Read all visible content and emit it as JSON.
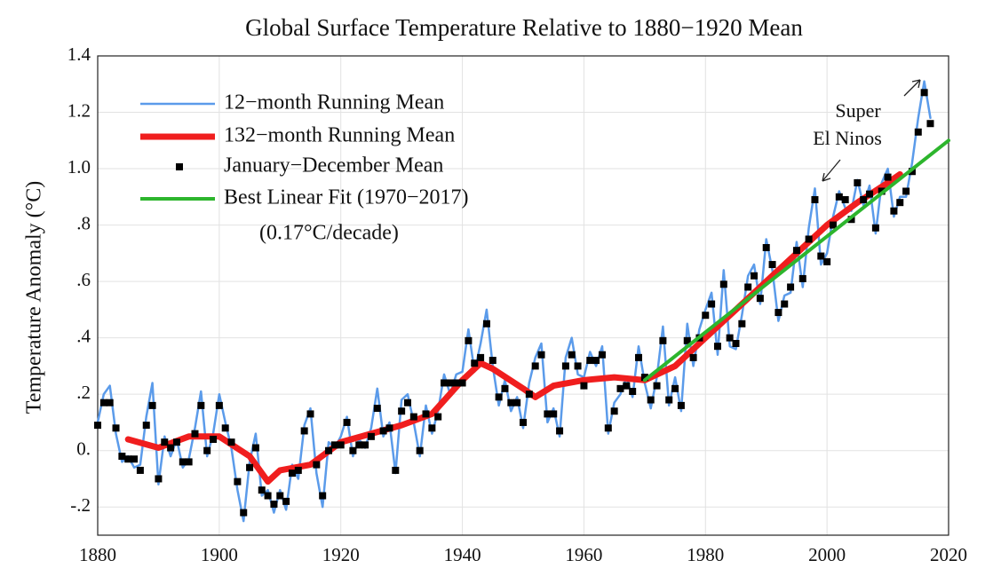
{
  "chart_data": {
    "type": "line",
    "title": "Global Surface Temperature Relative to 1880−1920 Mean",
    "y_label": "Temperature Anomaly (°C)",
    "annotations": [
      "(0.17°C/decade)",
      "Super",
      "El Ninos"
    ],
    "xlim": [
      1880,
      2020
    ],
    "xticks": [
      1880,
      1900,
      1920,
      1940,
      1960,
      1980,
      2000,
      2020
    ],
    "ylim": [
      -0.3,
      1.4
    ],
    "yticks": [
      {
        "value": -0.2,
        "label": "-.2"
      },
      {
        "value": 0,
        "label": "0."
      },
      {
        "value": 0.2,
        "label": ".2"
      },
      {
        "value": 0.4,
        "label": ".4"
      },
      {
        "value": 0.6,
        "label": ".6"
      },
      {
        "value": 0.8,
        "label": ".8"
      },
      {
        "value": 1.0,
        "label": "1.0"
      },
      {
        "value": 1.2,
        "label": "1.2"
      },
      1.4
    ],
    "grid": true,
    "series": [
      {
        "name": "12−month Running Mean",
        "color": "#5b9bea",
        "style": "line",
        "x": [
          1880,
          1881,
          1882,
          1883,
          1884,
          1885,
          1886,
          1887,
          1888,
          1889,
          1890,
          1891,
          1892,
          1893,
          1894,
          1895,
          1896,
          1897,
          1898,
          1899,
          1900,
          1901,
          1902,
          1903,
          1904,
          1905,
          1906,
          1907,
          1908,
          1909,
          1910,
          1911,
          1912,
          1913,
          1914,
          1915,
          1916,
          1917,
          1918,
          1919,
          1920,
          1921,
          1922,
          1923,
          1924,
          1925,
          1926,
          1927,
          1928,
          1929,
          1930,
          1931,
          1932,
          1933,
          1934,
          1935,
          1936,
          1937,
          1938,
          1939,
          1940,
          1941,
          1942,
          1943,
          1944,
          1945,
          1946,
          1947,
          1948,
          1949,
          1950,
          1951,
          1952,
          1953,
          1954,
          1955,
          1956,
          1957,
          1958,
          1959,
          1960,
          1961,
          1962,
          1963,
          1964,
          1965,
          1966,
          1967,
          1968,
          1969,
          1970,
          1971,
          1972,
          1973,
          1974,
          1975,
          1976,
          1977,
          1978,
          1979,
          1980,
          1981,
          1982,
          1983,
          1984,
          1985,
          1986,
          1987,
          1988,
          1989,
          1990,
          1991,
          1992,
          1993,
          1994,
          1995,
          1996,
          1997,
          1998,
          1999,
          2000,
          2001,
          2002,
          2003,
          2004,
          2005,
          2006,
          2007,
          2008,
          2009,
          2010,
          2011,
          2012,
          2013,
          2014,
          2015,
          2016,
          2017
        ],
        "values": [
          0.1,
          0.2,
          0.23,
          0.06,
          -0.04,
          -0.02,
          -0.06,
          -0.05,
          0.12,
          0.24,
          -0.12,
          0.05,
          -0.02,
          0.04,
          -0.06,
          -0.03,
          0.08,
          0.21,
          -0.02,
          0.06,
          0.2,
          0.1,
          0.01,
          -0.14,
          -0.25,
          -0.04,
          0.06,
          -0.16,
          -0.14,
          -0.22,
          -0.14,
          -0.21,
          -0.05,
          -0.1,
          0.09,
          0.15,
          -0.08,
          -0.2,
          0.03,
          0.01,
          0.05,
          0.12,
          -0.02,
          0.04,
          0.01,
          0.08,
          0.22,
          0.05,
          0.1,
          -0.08,
          0.18,
          0.2,
          0.1,
          -0.02,
          0.16,
          0.06,
          0.14,
          0.27,
          0.2,
          0.27,
          0.28,
          0.43,
          0.28,
          0.38,
          0.5,
          0.3,
          0.16,
          0.25,
          0.14,
          0.19,
          0.08,
          0.24,
          0.33,
          0.38,
          0.1,
          0.15,
          0.05,
          0.33,
          0.4,
          0.27,
          0.26,
          0.35,
          0.3,
          0.37,
          0.06,
          0.17,
          0.2,
          0.26,
          0.19,
          0.37,
          0.24,
          0.15,
          0.26,
          0.44,
          0.16,
          0.26,
          0.14,
          0.45,
          0.3,
          0.43,
          0.5,
          0.56,
          0.34,
          0.64,
          0.37,
          0.36,
          0.48,
          0.62,
          0.66,
          0.52,
          0.75,
          0.64,
          0.46,
          0.55,
          0.56,
          0.74,
          0.58,
          0.79,
          0.93,
          0.66,
          0.7,
          0.83,
          0.92,
          0.86,
          0.85,
          0.96,
          0.87,
          0.94,
          0.77,
          0.95,
          1.0,
          0.83,
          0.9,
          0.9,
          1.02,
          1.18,
          1.31,
          1.18
        ]
      },
      {
        "name": "132−month Running Mean",
        "color": "#f01e1e",
        "style": "line",
        "x": [
          1885,
          1890,
          1895,
          1900,
          1905,
          1908,
          1910,
          1915,
          1920,
          1925,
          1930,
          1935,
          1940,
          1943,
          1945,
          1950,
          1952,
          1955,
          1960,
          1965,
          1970,
          1975,
          1980,
          1985,
          1990,
          1995,
          2000,
          2005,
          2010,
          2012
        ],
        "values": [
          0.04,
          0.01,
          0.05,
          0.05,
          -0.02,
          -0.11,
          -0.07,
          -0.05,
          0.03,
          0.06,
          0.09,
          0.13,
          0.25,
          0.31,
          0.29,
          0.22,
          0.19,
          0.23,
          0.25,
          0.26,
          0.25,
          0.3,
          0.4,
          0.5,
          0.6,
          0.7,
          0.8,
          0.88,
          0.95,
          0.98
        ]
      },
      {
        "name": "January−December Mean",
        "color": "#000000",
        "style": "markers",
        "x": [
          1880,
          1881,
          1882,
          1883,
          1884,
          1885,
          1886,
          1887,
          1888,
          1889,
          1890,
          1891,
          1892,
          1893,
          1894,
          1895,
          1896,
          1897,
          1898,
          1899,
          1900,
          1901,
          1902,
          1903,
          1904,
          1905,
          1906,
          1907,
          1908,
          1909,
          1910,
          1911,
          1912,
          1913,
          1914,
          1915,
          1916,
          1917,
          1918,
          1919,
          1920,
          1921,
          1922,
          1923,
          1924,
          1925,
          1926,
          1927,
          1928,
          1929,
          1930,
          1931,
          1932,
          1933,
          1934,
          1935,
          1936,
          1937,
          1938,
          1939,
          1940,
          1941,
          1942,
          1943,
          1944,
          1945,
          1946,
          1947,
          1948,
          1949,
          1950,
          1951,
          1952,
          1953,
          1954,
          1955,
          1956,
          1957,
          1958,
          1959,
          1960,
          1961,
          1962,
          1963,
          1964,
          1965,
          1966,
          1967,
          1968,
          1969,
          1970,
          1971,
          1972,
          1973,
          1974,
          1975,
          1976,
          1977,
          1978,
          1979,
          1980,
          1981,
          1982,
          1983,
          1984,
          1985,
          1986,
          1987,
          1988,
          1989,
          1990,
          1991,
          1992,
          1993,
          1994,
          1995,
          1996,
          1997,
          1998,
          1999,
          2000,
          2001,
          2002,
          2003,
          2004,
          2005,
          2006,
          2007,
          2008,
          2009,
          2010,
          2011,
          2012,
          2013,
          2014,
          2015,
          2016,
          2017
        ],
        "values": [
          0.09,
          0.17,
          0.17,
          0.08,
          -0.02,
          -0.03,
          -0.03,
          -0.07,
          0.09,
          0.16,
          -0.1,
          0.03,
          0.01,
          0.03,
          -0.04,
          -0.04,
          0.06,
          0.16,
          0.0,
          0.04,
          0.16,
          0.08,
          0.03,
          -0.11,
          -0.22,
          -0.06,
          0.01,
          -0.14,
          -0.16,
          -0.19,
          -0.16,
          -0.18,
          -0.08,
          -0.07,
          0.07,
          0.13,
          -0.05,
          -0.16,
          0.0,
          0.02,
          0.02,
          0.1,
          0.0,
          0.02,
          0.02,
          0.05,
          0.15,
          0.07,
          0.08,
          -0.07,
          0.14,
          0.17,
          0.12,
          0.0,
          0.13,
          0.08,
          0.12,
          0.24,
          0.24,
          0.24,
          0.24,
          0.39,
          0.31,
          0.33,
          0.45,
          0.32,
          0.19,
          0.22,
          0.17,
          0.17,
          0.1,
          0.2,
          0.3,
          0.34,
          0.13,
          0.13,
          0.07,
          0.3,
          0.34,
          0.3,
          0.23,
          0.32,
          0.32,
          0.34,
          0.08,
          0.14,
          0.22,
          0.23,
          0.21,
          0.33,
          0.26,
          0.18,
          0.23,
          0.39,
          0.18,
          0.22,
          0.16,
          0.39,
          0.33,
          0.4,
          0.48,
          0.52,
          0.37,
          0.59,
          0.4,
          0.38,
          0.45,
          0.58,
          0.62,
          0.54,
          0.72,
          0.66,
          0.49,
          0.52,
          0.58,
          0.71,
          0.61,
          0.75,
          0.89,
          0.69,
          0.67,
          0.8,
          0.9,
          0.89,
          0.82,
          0.95,
          0.89,
          0.91,
          0.79,
          0.92,
          0.97,
          0.85,
          0.88,
          0.92,
          0.99,
          1.13,
          1.27,
          1.16
        ]
      },
      {
        "name": "Best Linear Fit (1970−2017)",
        "color": "#2db52d",
        "style": "line",
        "x": [
          1970,
          2020
        ],
        "values": [
          0.25,
          1.1
        ]
      }
    ]
  }
}
